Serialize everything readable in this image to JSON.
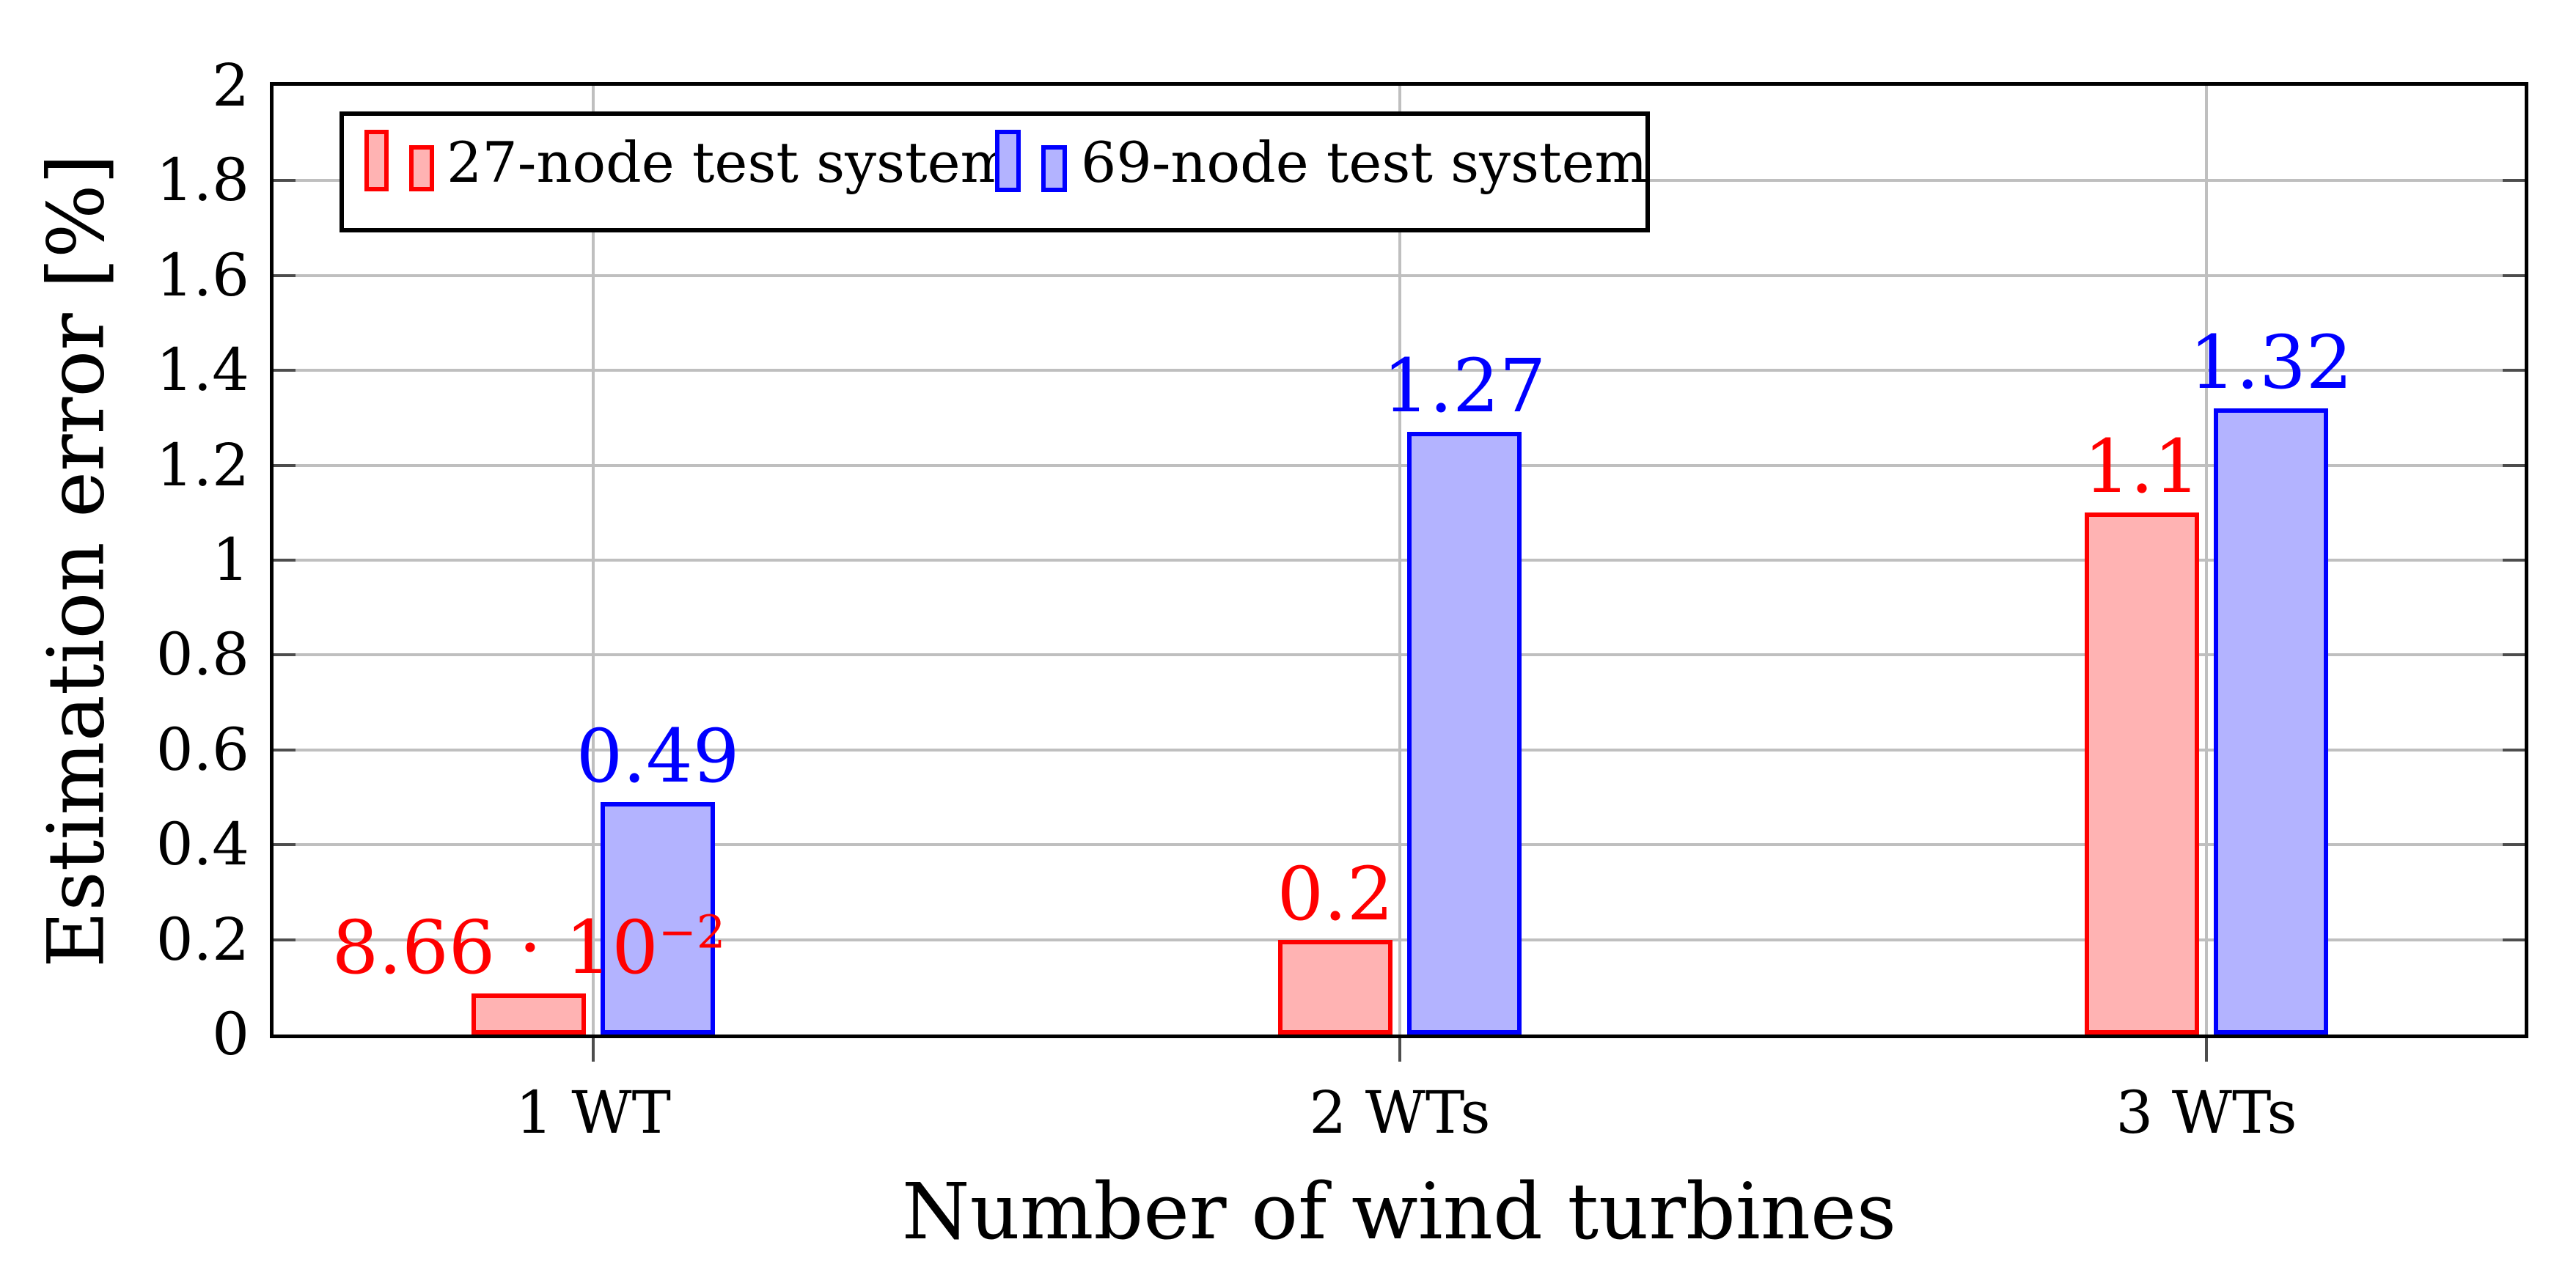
{
  "chart_data": {
    "type": "bar",
    "title": "",
    "xlabel": "Number of wind turbines",
    "ylabel": "Estimation error [%]",
    "categories": [
      "1 WT",
      "2 WTs",
      "3 WTs"
    ],
    "series": [
      {
        "name": "27-node test system",
        "values": [
          0.0866,
          0.2,
          1.1
        ],
        "value_labels": [
          "8.66 · 10^−2",
          "0.2",
          "1.1"
        ],
        "fill": "#FFB3B3",
        "border": "#FF0000"
      },
      {
        "name": "69-node test system",
        "values": [
          0.49,
          1.27,
          1.32
        ],
        "value_labels": [
          "0.49",
          "1.27",
          "1.32"
        ],
        "fill": "#B3B3FF",
        "border": "#0000FF"
      }
    ],
    "ylim": [
      0,
      2
    ],
    "y_ticks": [
      "0",
      "0.2",
      "0.4",
      "0.6",
      "0.8",
      "1",
      "1.2",
      "1.4",
      "1.6",
      "1.8",
      "2"
    ],
    "grid": "both",
    "legend_position": "top-left",
    "colors": {
      "grid": "#BFBFBF",
      "tick": "#4D4D4D",
      "axis": "#000000",
      "background": "#FFFFFF"
    }
  }
}
